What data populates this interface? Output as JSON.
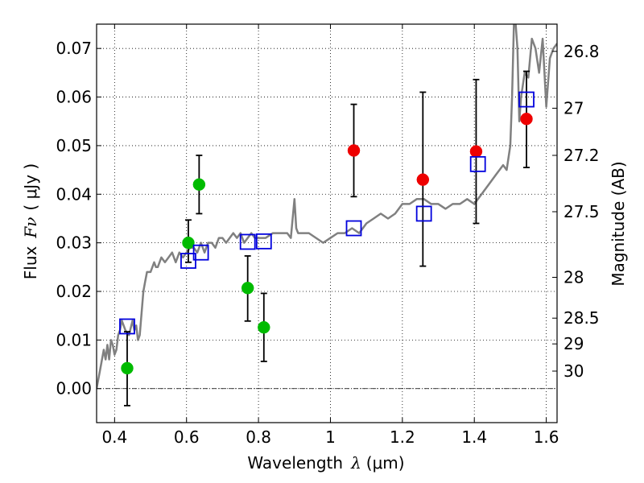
{
  "chart_data": {
    "type": "scatter",
    "title": "",
    "xlabel": {
      "prefix": "Wavelength",
      "symbol": "λ",
      "unit": "(μm)"
    },
    "ylabel": {
      "prefix": "Flux",
      "symbol": "Fν",
      "unit": "( μJy )"
    },
    "y2label": "Magnitude (AB)",
    "xlim": [
      0.35,
      1.63
    ],
    "ylim": [
      -0.007,
      0.075
    ],
    "grid": true,
    "grid_style": "dotted",
    "xticks": [
      0.4,
      0.6,
      0.8,
      1.0,
      1.2,
      1.4,
      1.6
    ],
    "xtick_labels": [
      "0.4",
      "0.6",
      "0.8",
      "1",
      "1.2",
      "1.4",
      "1.6"
    ],
    "yticks": [
      0.0,
      0.01,
      0.02,
      0.03,
      0.04,
      0.05,
      0.06,
      0.07
    ],
    "ytick_labels": [
      "0.00",
      "0.01",
      "0.02",
      "0.03",
      "0.04",
      "0.05",
      "0.06",
      "0.07"
    ],
    "right_ticks": [
      {
        "label": "26.8",
        "flux": 0.0694
      },
      {
        "label": "27",
        "flux": 0.0577
      },
      {
        "label": "27.2",
        "flux": 0.048
      },
      {
        "label": "27.5",
        "flux": 0.0364
      },
      {
        "label": "28",
        "flux": 0.0229
      },
      {
        "label": "28.5",
        "flux": 0.0145
      },
      {
        "label": "29",
        "flux": 0.0092
      },
      {
        "label": "30",
        "flux": 0.0036
      }
    ],
    "zero_line": true,
    "colors": {
      "sed": "#808080",
      "green": "#00bb00",
      "red": "#ee0000",
      "model": "#0000dd",
      "errorbar": "#000000"
    },
    "series": [
      {
        "kind": "line",
        "x": [
          0.35,
          0.36,
          0.37,
          0.375,
          0.38,
          0.385,
          0.39,
          0.395,
          0.4,
          0.405,
          0.41,
          0.415,
          0.42,
          0.43,
          0.44,
          0.45,
          0.455,
          0.46,
          0.465,
          0.47,
          0.48,
          0.485,
          0.49,
          0.5,
          0.51,
          0.515,
          0.52,
          0.53,
          0.54,
          0.55,
          0.56,
          0.57,
          0.58,
          0.59,
          0.6,
          0.61,
          0.62,
          0.63,
          0.64,
          0.65,
          0.66,
          0.67,
          0.68,
          0.69,
          0.7,
          0.71,
          0.72,
          0.73,
          0.74,
          0.75,
          0.76,
          0.77,
          0.78,
          0.79,
          0.8,
          0.82,
          0.84,
          0.86,
          0.88,
          0.89,
          0.9,
          0.905,
          0.91,
          0.92,
          0.94,
          0.96,
          0.98,
          1.0,
          1.02,
          1.04,
          1.06,
          1.08,
          1.1,
          1.12,
          1.14,
          1.16,
          1.18,
          1.2,
          1.22,
          1.24,
          1.26,
          1.28,
          1.3,
          1.32,
          1.34,
          1.36,
          1.38,
          1.4,
          1.42,
          1.44,
          1.46,
          1.48,
          1.49,
          1.5,
          1.505,
          1.51,
          1.515,
          1.52,
          1.525,
          1.53,
          1.54,
          1.55,
          1.56,
          1.57,
          1.58,
          1.59,
          1.6,
          1.61,
          1.62,
          1.63
        ],
        "y": [
          0.0,
          0.004,
          0.008,
          0.006,
          0.009,
          0.006,
          0.01,
          0.009,
          0.007,
          0.008,
          0.011,
          0.012,
          0.014,
          0.012,
          0.011,
          0.014,
          0.012,
          0.013,
          0.01,
          0.011,
          0.02,
          0.022,
          0.024,
          0.024,
          0.026,
          0.025,
          0.025,
          0.027,
          0.026,
          0.027,
          0.028,
          0.026,
          0.028,
          0.027,
          0.028,
          0.029,
          0.029,
          0.028,
          0.03,
          0.028,
          0.03,
          0.03,
          0.029,
          0.031,
          0.031,
          0.03,
          0.031,
          0.032,
          0.031,
          0.032,
          0.03,
          0.031,
          0.032,
          0.031,
          0.031,
          0.031,
          0.032,
          0.032,
          0.032,
          0.031,
          0.039,
          0.033,
          0.032,
          0.032,
          0.032,
          0.031,
          0.03,
          0.031,
          0.032,
          0.032,
          0.033,
          0.032,
          0.034,
          0.035,
          0.036,
          0.035,
          0.036,
          0.038,
          0.038,
          0.039,
          0.039,
          0.038,
          0.038,
          0.037,
          0.038,
          0.038,
          0.039,
          0.038,
          0.04,
          0.042,
          0.044,
          0.046,
          0.045,
          0.05,
          0.06,
          0.075,
          0.075,
          0.07,
          0.055,
          0.06,
          0.065,
          0.064,
          0.072,
          0.07,
          0.065,
          0.072,
          0.058,
          0.068,
          0.07,
          0.071
        ]
      },
      {
        "kind": "points",
        "marker": "circle",
        "color_key": "green",
        "x": [
          0.435,
          0.605,
          0.635,
          0.77,
          0.815
        ],
        "y": [
          0.0042,
          0.03,
          0.042,
          0.0207,
          0.0126
        ],
        "yerr_low": [
          0.0077,
          0.004,
          0.006,
          0.0068,
          0.007
        ],
        "yerr_high": [
          0.0075,
          0.0047,
          0.006,
          0.0066,
          0.007
        ]
      },
      {
        "kind": "points",
        "marker": "circle",
        "color_key": "red",
        "x": [
          1.065,
          1.257,
          1.405,
          1.545
        ],
        "y": [
          0.049,
          0.043,
          0.0488,
          0.0555
        ],
        "yerr_low": [
          0.0095,
          0.0178,
          0.0148,
          0.01
        ],
        "yerr_high": [
          0.0095,
          0.018,
          0.0148,
          0.0098
        ]
      },
      {
        "kind": "points",
        "marker": "square",
        "color_key": "model",
        "x": [
          0.435,
          0.605,
          0.64,
          0.77,
          0.815,
          1.065,
          1.26,
          1.41,
          1.545
        ],
        "y": [
          0.0128,
          0.0263,
          0.028,
          0.0302,
          0.0303,
          0.033,
          0.036,
          0.0462,
          0.0595
        ]
      }
    ]
  }
}
